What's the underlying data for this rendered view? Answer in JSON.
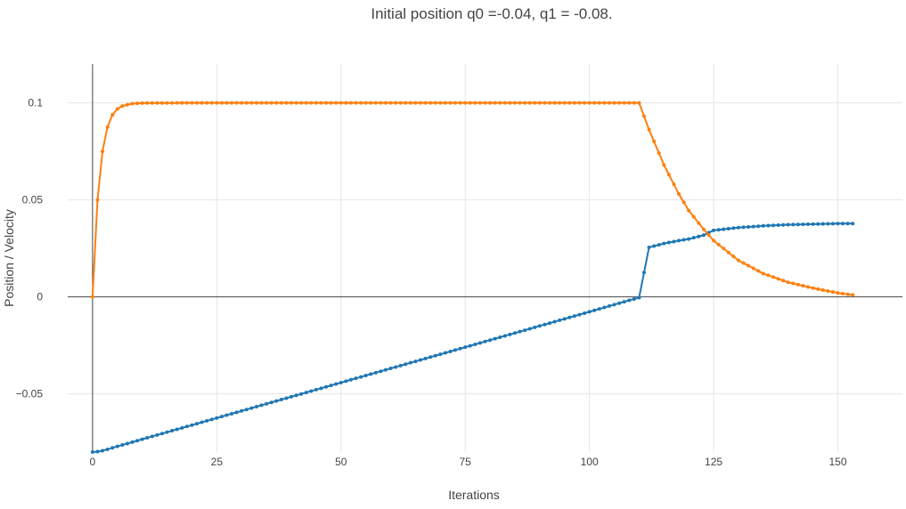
{
  "chart_data": {
    "type": "line",
    "title": "Initial position q0 =-0.04, q1 = -0.08.",
    "xlabel": "Iterations",
    "ylabel": "Position / Velocity",
    "xlim": [
      -5,
      163
    ],
    "ylim": [
      -0.08,
      0.12
    ],
    "x_ticks": [
      0,
      25,
      50,
      75,
      100,
      125,
      150
    ],
    "x_tick_labels": [
      "0",
      "25",
      "50",
      "75",
      "100",
      "125",
      "150"
    ],
    "y_ticks": [
      -0.05,
      0,
      0.05,
      0.1
    ],
    "y_tick_labels": [
      "−0.05",
      "0",
      "0.05",
      "0.1"
    ],
    "grid": true,
    "legend": "none",
    "series": [
      {
        "color": "#1f77b4",
        "x": [
          0,
          1,
          2,
          3,
          5,
          10,
          20,
          30,
          40,
          50,
          60,
          70,
          80,
          90,
          100,
          105,
          108,
          110,
          112,
          115,
          118,
          120,
          123,
          125,
          130,
          135,
          140,
          145,
          150,
          153
        ],
        "y": [
          -0.08,
          -0.0798,
          -0.0793,
          -0.0786,
          -0.0771,
          -0.0734,
          -0.0661,
          -0.0588,
          -0.0515,
          -0.0442,
          -0.0369,
          -0.0296,
          -0.0223,
          -0.015,
          -0.0077,
          -0.004,
          -0.0018,
          -0.0004,
          0.0255,
          0.0275,
          0.029,
          0.0298,
          0.0318,
          0.0343,
          0.0357,
          0.0366,
          0.0372,
          0.0375,
          0.0378,
          0.0378
        ]
      },
      {
        "color": "#ff7f0e",
        "x": [
          0,
          1,
          2,
          3,
          4,
          5,
          6,
          8,
          10,
          20,
          30,
          40,
          50,
          60,
          70,
          80,
          90,
          100,
          105,
          110,
          112,
          115,
          118,
          120,
          123,
          125,
          130,
          135,
          140,
          145,
          150,
          153
        ],
        "y": [
          0.0,
          0.05,
          0.075,
          0.0875,
          0.0938,
          0.0969,
          0.0984,
          0.0996,
          0.0999,
          0.1,
          0.1,
          0.1,
          0.1,
          0.1,
          0.1,
          0.1,
          0.1,
          0.1,
          0.1,
          0.1,
          0.0862,
          0.068,
          0.053,
          0.0445,
          0.0348,
          0.029,
          0.0188,
          0.012,
          0.0075,
          0.0045,
          0.002,
          0.001
        ]
      }
    ]
  }
}
